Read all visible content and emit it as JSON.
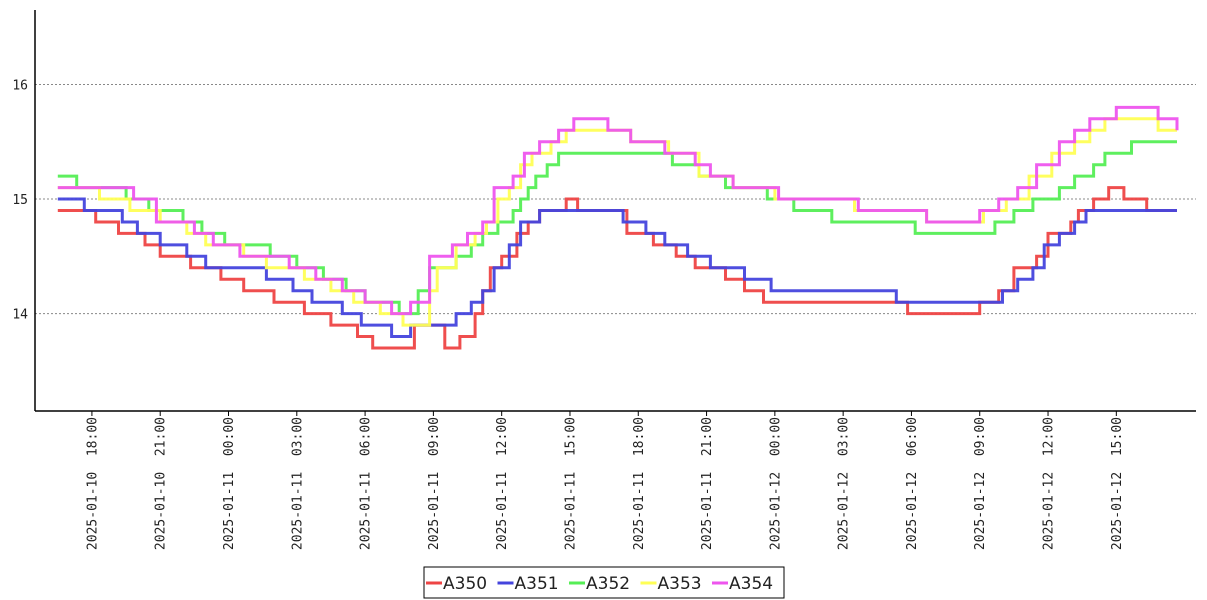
{
  "chart_data": {
    "type": "line",
    "title": "",
    "xlabel": "",
    "ylabel": "",
    "ylim": [
      13.15,
      16.65
    ],
    "xlim": [
      "2025-01-10 15:30",
      "2025-01-12 18:30"
    ],
    "grid": "horizontal dotted",
    "legend": "bottom-center",
    "yticks": [
      "14",
      "15",
      "16"
    ],
    "xticks": [
      "2025-01-10 18:00",
      "2025-01-10 21:00",
      "2025-01-11 00:00",
      "2025-01-11 03:00",
      "2025-01-11 06:00",
      "2025-01-11 09:00",
      "2025-01-11 12:00",
      "2025-01-11 15:00",
      "2025-01-11 18:00",
      "2025-01-11 21:00",
      "2025-01-12 00:00",
      "2025-01-12 03:00",
      "2025-01-12 06:00",
      "2025-01-12 09:00",
      "2025-01-12 12:00",
      "2025-01-12 15:00"
    ],
    "series": [
      {
        "name": "A350",
        "color": "#ee4444",
        "points": [
          [
            "2025-01-10 16:30",
            14.9
          ],
          [
            "2025-01-10 18:10",
            14.8
          ],
          [
            "2025-01-10 19:10",
            14.7
          ],
          [
            "2025-01-10 20:20",
            14.6
          ],
          [
            "2025-01-10 21:00",
            14.5
          ],
          [
            "2025-01-10 22:20",
            14.4
          ],
          [
            "2025-01-10 23:40",
            14.3
          ],
          [
            "2025-01-11 00:40",
            14.2
          ],
          [
            "2025-01-11 02:00",
            14.1
          ],
          [
            "2025-01-11 03:20",
            14.0
          ],
          [
            "2025-01-11 04:30",
            13.9
          ],
          [
            "2025-01-11 05:40",
            13.8
          ],
          [
            "2025-01-11 06:20",
            13.7
          ],
          [
            "2025-01-11 08:10",
            13.9
          ],
          [
            "2025-01-11 09:30",
            13.7
          ],
          [
            "2025-01-11 10:10",
            13.8
          ],
          [
            "2025-01-11 10:50",
            14.0
          ],
          [
            "2025-01-11 11:10",
            14.2
          ],
          [
            "2025-01-11 11:30",
            14.4
          ],
          [
            "2025-01-11 12:00",
            14.5
          ],
          [
            "2025-01-11 12:40",
            14.7
          ],
          [
            "2025-01-11 13:10",
            14.8
          ],
          [
            "2025-01-11 13:40",
            14.9
          ],
          [
            "2025-01-11 14:50",
            15.0
          ],
          [
            "2025-01-11 15:20",
            14.9
          ],
          [
            "2025-01-11 17:30",
            14.7
          ],
          [
            "2025-01-11 18:40",
            14.6
          ],
          [
            "2025-01-11 19:40",
            14.5
          ],
          [
            "2025-01-11 20:30",
            14.4
          ],
          [
            "2025-01-11 21:50",
            14.3
          ],
          [
            "2025-01-11 22:40",
            14.2
          ],
          [
            "2025-01-11 23:30",
            14.1
          ],
          [
            "2025-01-12 05:50",
            14.0
          ],
          [
            "2025-01-12 09:00",
            14.1
          ],
          [
            "2025-01-12 09:50",
            14.2
          ],
          [
            "2025-01-12 10:30",
            14.4
          ],
          [
            "2025-01-12 11:30",
            14.5
          ],
          [
            "2025-01-12 12:00",
            14.7
          ],
          [
            "2025-01-12 13:00",
            14.8
          ],
          [
            "2025-01-12 13:20",
            14.9
          ],
          [
            "2025-01-12 14:00",
            15.0
          ],
          [
            "2025-01-12 14:40",
            15.1
          ],
          [
            "2025-01-12 15:20",
            15.0
          ],
          [
            "2025-01-12 16:20",
            14.9
          ],
          [
            "2025-01-12 17:40",
            14.9
          ]
        ]
      },
      {
        "name": "A351",
        "color": "#4444dd",
        "points": [
          [
            "2025-01-10 16:30",
            15.0
          ],
          [
            "2025-01-10 17:40",
            14.9
          ],
          [
            "2025-01-10 19:20",
            14.8
          ],
          [
            "2025-01-10 20:00",
            14.7
          ],
          [
            "2025-01-10 21:00",
            14.6
          ],
          [
            "2025-01-10 22:10",
            14.5
          ],
          [
            "2025-01-10 23:00",
            14.4
          ],
          [
            "2025-01-11 01:40",
            14.3
          ],
          [
            "2025-01-11 02:50",
            14.2
          ],
          [
            "2025-01-11 03:40",
            14.1
          ],
          [
            "2025-01-11 05:00",
            14.0
          ],
          [
            "2025-01-11 05:50",
            13.9
          ],
          [
            "2025-01-11 07:10",
            13.8
          ],
          [
            "2025-01-11 08:00",
            13.9
          ],
          [
            "2025-01-11 10:00",
            14.0
          ],
          [
            "2025-01-11 10:40",
            14.1
          ],
          [
            "2025-01-11 11:10",
            14.2
          ],
          [
            "2025-01-11 11:40",
            14.4
          ],
          [
            "2025-01-11 12:20",
            14.6
          ],
          [
            "2025-01-11 12:50",
            14.8
          ],
          [
            "2025-01-11 13:40",
            14.9
          ],
          [
            "2025-01-11 17:20",
            14.8
          ],
          [
            "2025-01-11 18:20",
            14.7
          ],
          [
            "2025-01-11 19:10",
            14.6
          ],
          [
            "2025-01-11 20:10",
            14.5
          ],
          [
            "2025-01-11 21:10",
            14.4
          ],
          [
            "2025-01-11 22:40",
            14.3
          ],
          [
            "2025-01-11 23:50",
            14.2
          ],
          [
            "2025-01-12 05:20",
            14.1
          ],
          [
            "2025-01-12 09:00",
            14.1
          ],
          [
            "2025-01-12 10:00",
            14.2
          ],
          [
            "2025-01-12 10:40",
            14.3
          ],
          [
            "2025-01-12 11:20",
            14.4
          ],
          [
            "2025-01-12 11:50",
            14.6
          ],
          [
            "2025-01-12 12:30",
            14.7
          ],
          [
            "2025-01-12 13:10",
            14.8
          ],
          [
            "2025-01-12 13:40",
            14.9
          ],
          [
            "2025-01-12 17:40",
            14.9
          ]
        ]
      },
      {
        "name": "A352",
        "color": "#55ee55",
        "points": [
          [
            "2025-01-10 16:30",
            15.2
          ],
          [
            "2025-01-10 17:20",
            15.1
          ],
          [
            "2025-01-10 19:30",
            15.0
          ],
          [
            "2025-01-10 20:30",
            14.9
          ],
          [
            "2025-01-10 22:00",
            14.8
          ],
          [
            "2025-01-10 22:50",
            14.7
          ],
          [
            "2025-01-10 23:50",
            14.6
          ],
          [
            "2025-01-11 01:50",
            14.5
          ],
          [
            "2025-01-11 03:00",
            14.4
          ],
          [
            "2025-01-11 04:10",
            14.3
          ],
          [
            "2025-01-11 05:10",
            14.2
          ],
          [
            "2025-01-11 06:00",
            14.1
          ],
          [
            "2025-01-11 07:30",
            14.0
          ],
          [
            "2025-01-11 08:20",
            14.2
          ],
          [
            "2025-01-11 08:50",
            14.4
          ],
          [
            "2025-01-11 10:00",
            14.5
          ],
          [
            "2025-01-11 10:40",
            14.6
          ],
          [
            "2025-01-11 11:10",
            14.7
          ],
          [
            "2025-01-11 11:50",
            14.8
          ],
          [
            "2025-01-11 12:30",
            14.9
          ],
          [
            "2025-01-11 12:50",
            15.0
          ],
          [
            "2025-01-11 13:10",
            15.1
          ],
          [
            "2025-01-11 13:30",
            15.2
          ],
          [
            "2025-01-11 14:00",
            15.3
          ],
          [
            "2025-01-11 14:30",
            15.4
          ],
          [
            "2025-01-11 19:30",
            15.3
          ],
          [
            "2025-01-11 20:40",
            15.2
          ],
          [
            "2025-01-11 21:50",
            15.1
          ],
          [
            "2025-01-11 23:40",
            15.0
          ],
          [
            "2025-01-12 00:50",
            14.9
          ],
          [
            "2025-01-12 02:30",
            14.8
          ],
          [
            "2025-01-12 06:10",
            14.7
          ],
          [
            "2025-01-12 09:40",
            14.8
          ],
          [
            "2025-01-12 10:30",
            14.9
          ],
          [
            "2025-01-12 11:20",
            15.0
          ],
          [
            "2025-01-12 12:30",
            15.1
          ],
          [
            "2025-01-12 13:10",
            15.2
          ],
          [
            "2025-01-12 14:00",
            15.3
          ],
          [
            "2025-01-12 14:30",
            15.4
          ],
          [
            "2025-01-12 15:40",
            15.5
          ],
          [
            "2025-01-12 17:40",
            15.5
          ]
        ]
      },
      {
        "name": "A353",
        "color": "#ffff55",
        "points": [
          [
            "2025-01-10 16:30",
            15.1
          ],
          [
            "2025-01-10 18:20",
            15.0
          ],
          [
            "2025-01-10 19:40",
            14.9
          ],
          [
            "2025-01-10 21:00",
            14.8
          ],
          [
            "2025-01-10 22:10",
            14.7
          ],
          [
            "2025-01-10 23:00",
            14.6
          ],
          [
            "2025-01-11 00:40",
            14.5
          ],
          [
            "2025-01-11 01:40",
            14.4
          ],
          [
            "2025-01-11 03:20",
            14.3
          ],
          [
            "2025-01-11 04:30",
            14.2
          ],
          [
            "2025-01-11 05:30",
            14.1
          ],
          [
            "2025-01-11 06:40",
            14.0
          ],
          [
            "2025-01-11 07:40",
            13.9
          ],
          [
            "2025-01-11 08:50",
            14.2
          ],
          [
            "2025-01-11 09:10",
            14.4
          ],
          [
            "2025-01-11 10:00",
            14.6
          ],
          [
            "2025-01-11 10:50",
            14.7
          ],
          [
            "2025-01-11 11:20",
            14.8
          ],
          [
            "2025-01-11 11:50",
            15.0
          ],
          [
            "2025-01-11 12:20",
            15.1
          ],
          [
            "2025-01-11 12:50",
            15.3
          ],
          [
            "2025-01-11 13:20",
            15.4
          ],
          [
            "2025-01-11 14:10",
            15.5
          ],
          [
            "2025-01-11 14:50",
            15.6
          ],
          [
            "2025-01-11 17:40",
            15.5
          ],
          [
            "2025-01-11 19:20",
            15.4
          ],
          [
            "2025-01-11 20:40",
            15.2
          ],
          [
            "2025-01-11 22:10",
            15.1
          ],
          [
            "2025-01-12 00:00",
            15.0
          ],
          [
            "2025-01-12 03:30",
            14.9
          ],
          [
            "2025-01-12 06:40",
            14.8
          ],
          [
            "2025-01-12 09:10",
            14.9
          ],
          [
            "2025-01-12 10:10",
            15.0
          ],
          [
            "2025-01-12 11:10",
            15.2
          ],
          [
            "2025-01-12 12:10",
            15.4
          ],
          [
            "2025-01-12 13:10",
            15.5
          ],
          [
            "2025-01-12 13:50",
            15.6
          ],
          [
            "2025-01-12 14:30",
            15.7
          ],
          [
            "2025-01-12 16:50",
            15.6
          ],
          [
            "2025-01-12 17:40",
            15.6
          ]
        ]
      },
      {
        "name": "A354",
        "color": "#ee55ee",
        "points": [
          [
            "2025-01-10 16:30",
            15.1
          ],
          [
            "2025-01-10 19:50",
            15.0
          ],
          [
            "2025-01-10 20:50",
            14.8
          ],
          [
            "2025-01-10 22:30",
            14.7
          ],
          [
            "2025-01-10 23:20",
            14.6
          ],
          [
            "2025-01-11 00:30",
            14.5
          ],
          [
            "2025-01-11 02:40",
            14.4
          ],
          [
            "2025-01-11 03:50",
            14.3
          ],
          [
            "2025-01-11 05:00",
            14.2
          ],
          [
            "2025-01-11 06:00",
            14.1
          ],
          [
            "2025-01-11 07:10",
            14.0
          ],
          [
            "2025-01-11 08:00",
            14.1
          ],
          [
            "2025-01-11 08:50",
            14.5
          ],
          [
            "2025-01-11 09:50",
            14.6
          ],
          [
            "2025-01-11 10:30",
            14.7
          ],
          [
            "2025-01-11 11:10",
            14.8
          ],
          [
            "2025-01-11 11:40",
            15.1
          ],
          [
            "2025-01-11 12:30",
            15.2
          ],
          [
            "2025-01-11 13:00",
            15.4
          ],
          [
            "2025-01-11 13:40",
            15.5
          ],
          [
            "2025-01-11 14:30",
            15.6
          ],
          [
            "2025-01-11 15:10",
            15.7
          ],
          [
            "2025-01-11 16:40",
            15.6
          ],
          [
            "2025-01-11 17:40",
            15.5
          ],
          [
            "2025-01-11 19:10",
            15.4
          ],
          [
            "2025-01-11 20:30",
            15.3
          ],
          [
            "2025-01-11 21:10",
            15.2
          ],
          [
            "2025-01-11 22:10",
            15.1
          ],
          [
            "2025-01-12 00:10",
            15.0
          ],
          [
            "2025-01-12 03:40",
            14.9
          ],
          [
            "2025-01-12 06:40",
            14.8
          ],
          [
            "2025-01-12 09:00",
            14.9
          ],
          [
            "2025-01-12 09:50",
            15.0
          ],
          [
            "2025-01-12 10:40",
            15.1
          ],
          [
            "2025-01-12 11:30",
            15.3
          ],
          [
            "2025-01-12 12:30",
            15.5
          ],
          [
            "2025-01-12 13:10",
            15.6
          ],
          [
            "2025-01-12 13:50",
            15.7
          ],
          [
            "2025-01-12 15:00",
            15.8
          ],
          [
            "2025-01-12 16:50",
            15.7
          ],
          [
            "2025-01-12 17:40",
            15.6
          ]
        ]
      }
    ]
  }
}
